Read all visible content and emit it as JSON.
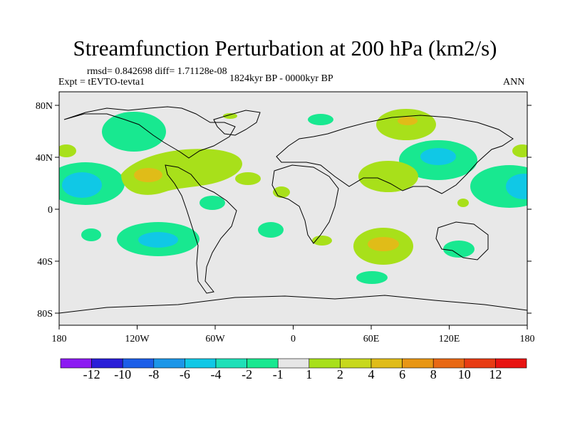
{
  "title": "Streamfunction Perturbation at 200 hPa (km2/s)",
  "stats": "rmsd= 0.842698 diff= 1.71128e-08",
  "experiment": "Expt = tEVTO-tevta1",
  "period": "1824kyr BP - 0000kyr BP",
  "season": "ANN",
  "colors": {
    "background": "#e8e8e8",
    "coastline": "#000000",
    "palette": [
      "#8c1af2",
      "#2a1ed8",
      "#1c5ee8",
      "#1c96e8",
      "#10c8e6",
      "#1ee0b8",
      "#18e890",
      "#e6e6e6",
      "#a8e01a",
      "#c8d81c",
      "#e0bc18",
      "#e89614",
      "#e86814",
      "#e83c14",
      "#e81412"
    ]
  },
  "lat_ticks": [
    "80N",
    "40N",
    "0",
    "40S",
    "80S"
  ],
  "lon_ticks": [
    "180",
    "120W",
    "60W",
    "0",
    "60E",
    "120E",
    "180"
  ],
  "colorbar": {
    "labels": [
      "-12",
      "-10",
      "-8",
      "-6",
      "-4",
      "-2",
      "-1",
      "1",
      "2",
      "4",
      "6",
      "8",
      "10",
      "12"
    ]
  },
  "anomaly_regions": [
    {
      "region": "North Pacific high latitudes",
      "value": -2
    },
    {
      "region": "Eastern North Pacific subtropics",
      "value": -4
    },
    {
      "region": "Western North Atlantic / North America",
      "value": 2
    },
    {
      "region": "Mexico / Gulf",
      "value": 4
    },
    {
      "region": "Central North Atlantic",
      "value": -1
    },
    {
      "region": "Northern South America",
      "value": -2
    },
    {
      "region": "South Pacific subtropics",
      "value": -4
    },
    {
      "region": "South Atlantic",
      "value": -2
    },
    {
      "region": "North Africa / Middle East",
      "value": 2
    },
    {
      "region": "Siberia",
      "value": 2
    },
    {
      "region": "East Asia / North Pacific",
      "value": -4
    },
    {
      "region": "South Indian Ocean",
      "value": 4
    },
    {
      "region": "Southern Indian Ocean",
      "value": -2
    },
    {
      "region": "Australia",
      "value": -2
    },
    {
      "region": "Western Pacific tropics",
      "value": -2
    },
    {
      "region": "Maritime continent",
      "value": 2
    }
  ]
}
